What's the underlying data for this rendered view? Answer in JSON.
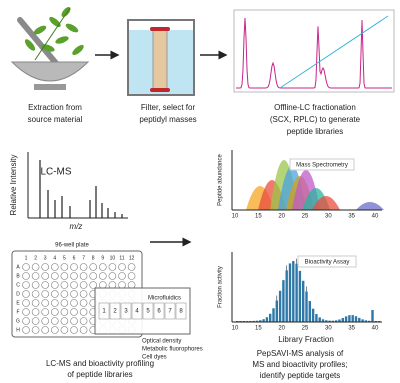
{
  "steps": [
    {
      "caption": [
        "Extraction from",
        "source material"
      ]
    },
    {
      "caption": [
        "Filter, select for",
        "peptidyl masses"
      ]
    },
    {
      "caption": [
        "Offline-LC fractionation",
        "(SCX, RPLC) to generate",
        "peptide libraries"
      ]
    }
  ],
  "lcms": {
    "y_label": "Relative Intensity",
    "title": "LC-MS",
    "x_label": "m/z"
  },
  "mass_spec": {
    "y_label": "Peptide abundance",
    "title": "Mass Spectrometry",
    "ticks": [
      "10",
      "15",
      "20",
      "25",
      "30",
      "35",
      "40"
    ]
  },
  "bioactivity": {
    "y_label": "Fraction activity",
    "title": "Bioactivity Assay",
    "x_label": "Library Fraction",
    "ticks": [
      "10",
      "15",
      "20",
      "25",
      "30",
      "35",
      "40"
    ]
  },
  "plate": {
    "title": "96-well plate",
    "rows": [
      "A",
      "B",
      "C",
      "D",
      "E",
      "F",
      "G",
      "H"
    ],
    "columns": [
      "1",
      "2",
      "3",
      "4",
      "5",
      "6",
      "7",
      "8",
      "9",
      "10",
      "11",
      "12"
    ],
    "chip_label": "Microfluidics",
    "chip_columns": [
      "1",
      "2",
      "3",
      "4",
      "5",
      "6",
      "7",
      "8"
    ],
    "readouts": [
      "Optical density",
      "Metabolic fluorophores",
      "Cell dyes"
    ]
  },
  "bottom_captions": [
    [
      "LC-MS and bioactivity profiling",
      "of peptide libraries"
    ],
    [
      "PepSAVI-MS analysis of",
      "MS and bioactivity profiles;",
      "identify peptide targets"
    ]
  ]
}
